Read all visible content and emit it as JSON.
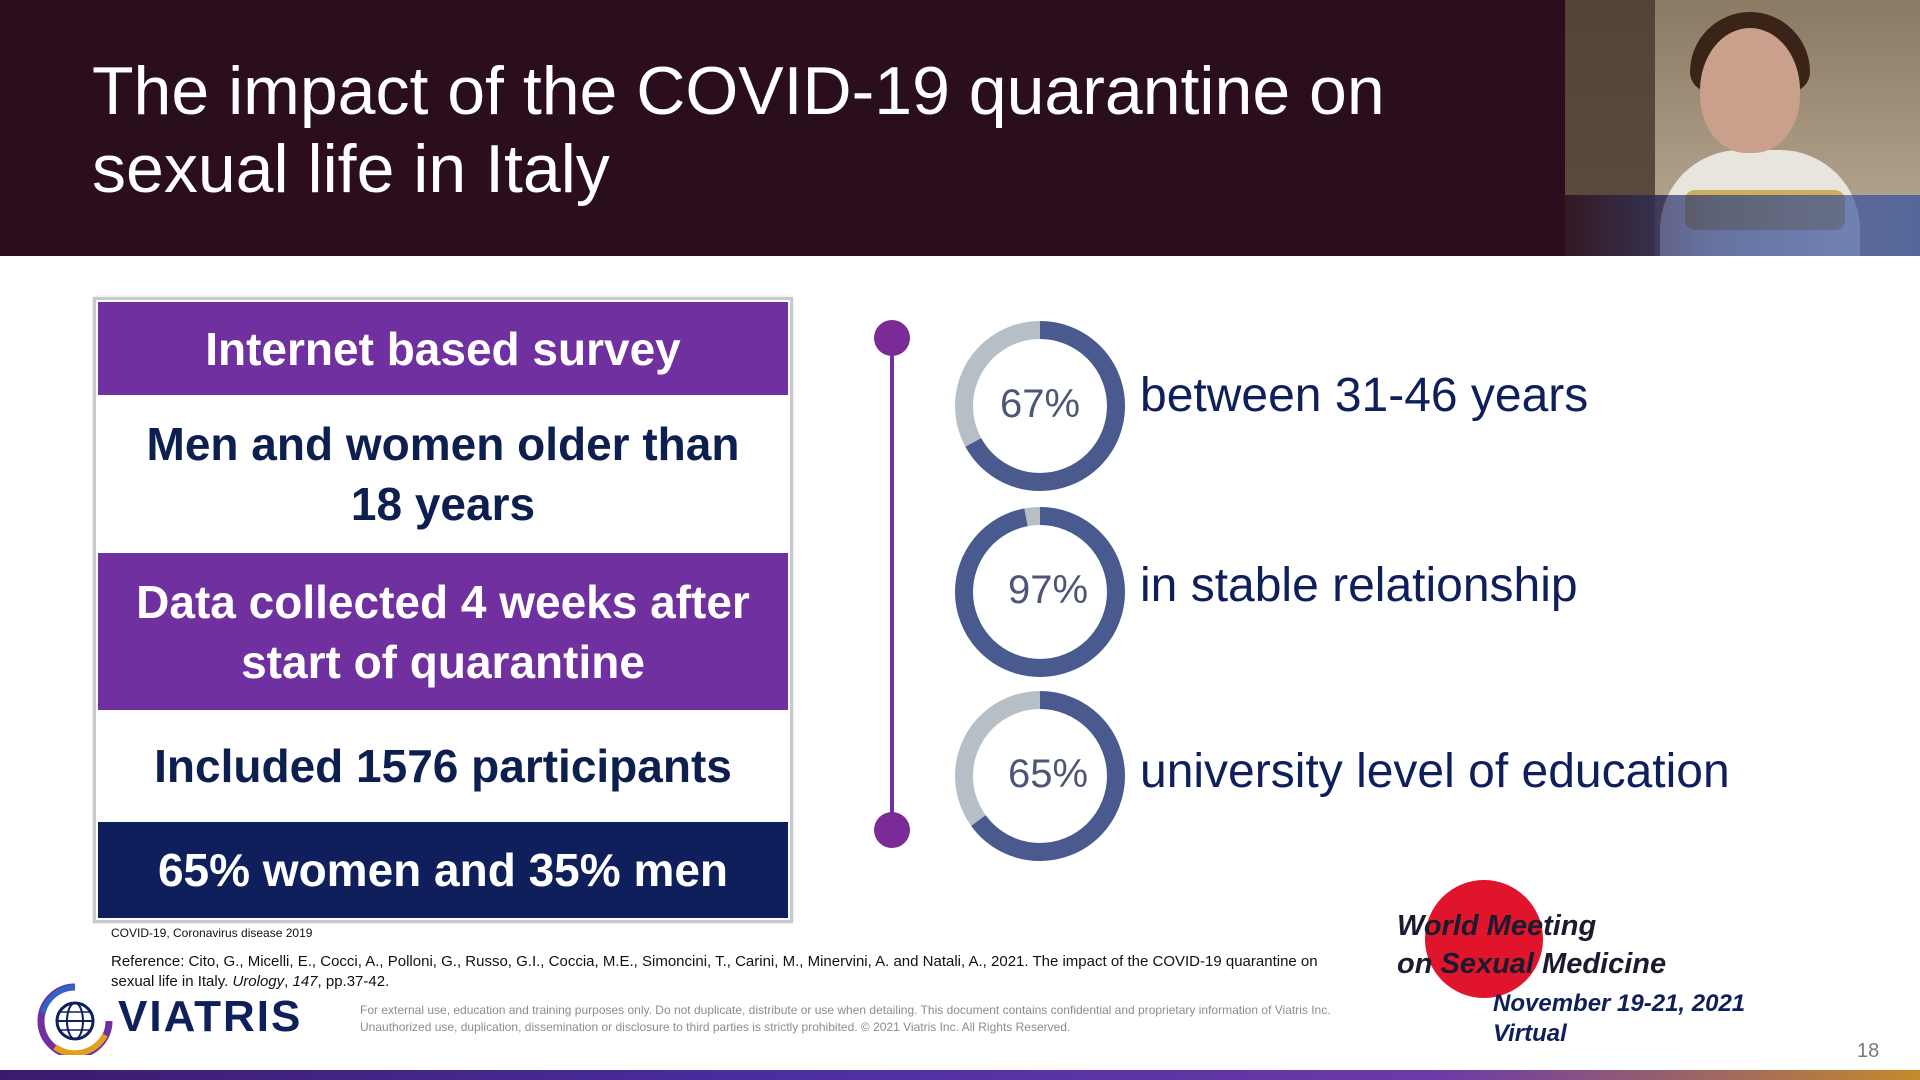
{
  "slide": {
    "title": "The impact of the COVID-19 quarantine on sexual life in Italy",
    "page_number": "18"
  },
  "survey_panel": [
    {
      "text": "Internet based survey",
      "style": "purple"
    },
    {
      "text": "Men and women older than 18 years",
      "style": "white"
    },
    {
      "text": "Data collected 4 weeks after start of quarantine",
      "style": "purple"
    },
    {
      "text": "Included 1576 participants",
      "style": "white"
    },
    {
      "text": "65% women and 35% men",
      "style": "navy"
    }
  ],
  "stats": [
    {
      "percent": 67,
      "label": "67%",
      "text": "between 31-46 years"
    },
    {
      "percent": 97,
      "label": "97%",
      "text": "in stable relationship"
    },
    {
      "percent": 65,
      "label": "65%",
      "text": "university level of education"
    }
  ],
  "colors": {
    "header_bg": "#2a0e1e",
    "purple": "#7030a0",
    "navy": "#0e1f5b",
    "donut_fill": "#4a5a8e",
    "donut_track": "#b7bfc6"
  },
  "footnotes": {
    "abbreviation": "COVID-19, Coronavirus disease 2019",
    "reference_prefix": "Reference: Cito, G., Micelli, E., Cocci, A., Polloni, G., Russo, G.I., Coccia, M.E., Simoncini, T., Carini, M., Minervini, A. and Natali, A., 2021. The impact of the COVID-19 quarantine on sexual life in Italy. ",
    "reference_journal": "Urology",
    "reference_mid": ", ",
    "reference_volume": "147",
    "reference_pages": ", pp.37-42.",
    "disclaimer": "For external use, education and training purposes only. Do not duplicate, distribute or use when detailing. This document contains confidential and proprietary information of Viatris Inc. Unauthorized use, duplication, dissemination or disclosure to third parties is strictly prohibited. © 2021 Viatris Inc. All Rights Reserved."
  },
  "branding": {
    "company": "VIATRIS",
    "company_icon": "globe-logo-icon",
    "meeting_line1": "World Meeting",
    "meeting_line2": "on Sexual Medicine",
    "meeting_dates": "November 19-21, 2021",
    "meeting_mode": "Virtual"
  },
  "webcam": {
    "description_icon": "presenter-video-feed"
  }
}
